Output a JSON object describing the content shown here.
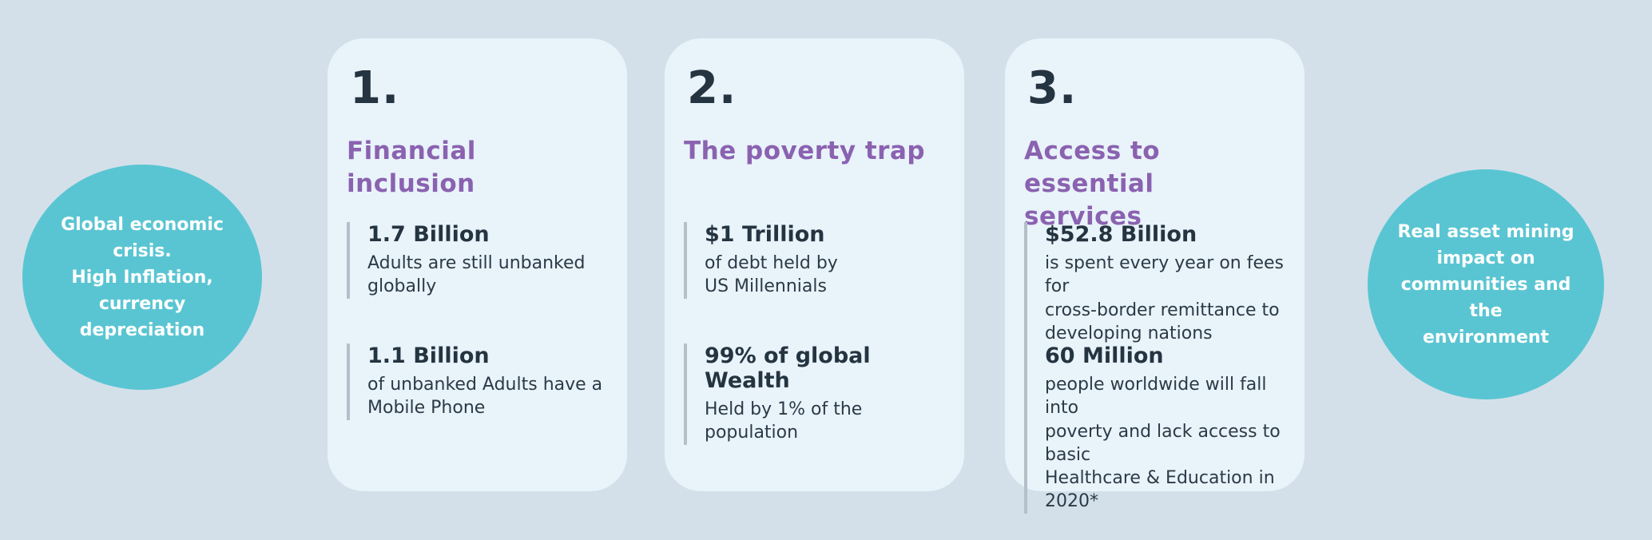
{
  "palette": {
    "background": "#D3E0EA",
    "card_background": "#E9F3FA",
    "circle_teal": "#5AC5D2",
    "heading_purple": "#8A62B0",
    "text_dark": "#243441",
    "stat_bar_gray": "#B4C0C9"
  },
  "left_circle": {
    "text": "Global economic\ncrisis.\nHigh Inflation,\ncurrency\ndepreciation"
  },
  "right_circle": {
    "text": "Real asset  mining\nimpact on\ncommunities and the\nenvironment"
  },
  "cards": [
    {
      "number": "1.",
      "title": "Financial inclusion",
      "stats": [
        {
          "value": "1.7 Billion",
          "description": "Adults are still unbanked\nglobally"
        },
        {
          "value": "1.1 Billion",
          "description": "of unbanked Adults have a\nMobile Phone"
        }
      ]
    },
    {
      "number": "2.",
      "title": "The poverty trap",
      "stats": [
        {
          "value": "$1 Trillion",
          "description": "of debt held by\nUS Millennials"
        },
        {
          "value": "99% of global Wealth",
          "description": "Held by 1% of the\npopulation"
        }
      ]
    },
    {
      "number": "3.",
      "title": "Access to essential\nservices",
      "stats": [
        {
          "value": "$52.8 Billion",
          "description": "is spent every year on fees for\ncross-border remittance to\ndeveloping nations"
        },
        {
          "value": "60 Million",
          "description": "people worldwide will fall into\npoverty and lack access to basic\nHealthcare & Education in 2020*"
        }
      ]
    }
  ]
}
